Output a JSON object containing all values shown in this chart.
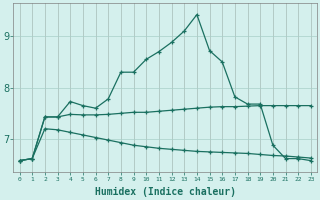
{
  "xlabel": "Humidex (Indice chaleur)",
  "bg_color": "#d4f0ed",
  "grid_color": "#a8cfc8",
  "line_color": "#1a7060",
  "xlim": [
    -0.5,
    23.5
  ],
  "ylim": [
    6.35,
    9.65
  ],
  "yticks": [
    7,
    8,
    9
  ],
  "xticks": [
    0,
    1,
    2,
    3,
    4,
    5,
    6,
    7,
    8,
    9,
    10,
    11,
    12,
    13,
    14,
    15,
    16,
    17,
    18,
    19,
    20,
    21,
    22,
    23
  ],
  "line1_x": [
    0,
    1,
    2,
    3,
    4,
    5,
    6,
    7,
    8,
    9,
    10,
    11,
    12,
    13,
    14,
    15,
    16,
    17,
    18,
    19,
    20,
    21,
    22,
    23
  ],
  "line1_y": [
    6.58,
    6.62,
    7.43,
    7.43,
    7.73,
    7.65,
    7.6,
    7.78,
    8.3,
    8.3,
    8.55,
    8.7,
    8.88,
    9.1,
    9.42,
    8.72,
    8.5,
    7.82,
    7.68,
    7.68,
    6.88,
    6.62,
    6.62,
    6.58
  ],
  "line2_x": [
    0,
    1,
    2,
    3,
    4,
    5,
    6,
    7,
    8,
    9,
    10,
    11,
    12,
    13,
    14,
    15,
    16,
    17,
    18,
    19,
    20,
    21,
    22,
    23
  ],
  "line2_y": [
    6.58,
    6.62,
    7.43,
    7.43,
    7.48,
    7.47,
    7.47,
    7.48,
    7.5,
    7.52,
    7.52,
    7.54,
    7.56,
    7.58,
    7.6,
    7.62,
    7.63,
    7.63,
    7.64,
    7.65,
    7.65,
    7.65,
    7.65,
    7.65
  ],
  "line3_x": [
    0,
    1,
    2,
    3,
    4,
    5,
    6,
    7,
    8,
    9,
    10,
    11,
    12,
    13,
    14,
    15,
    16,
    17,
    18,
    19,
    20,
    21,
    22,
    23
  ],
  "line3_y": [
    6.58,
    6.62,
    7.2,
    7.18,
    7.13,
    7.08,
    7.03,
    6.98,
    6.93,
    6.88,
    6.85,
    6.82,
    6.8,
    6.78,
    6.76,
    6.75,
    6.74,
    6.73,
    6.72,
    6.7,
    6.68,
    6.67,
    6.65,
    6.63
  ]
}
